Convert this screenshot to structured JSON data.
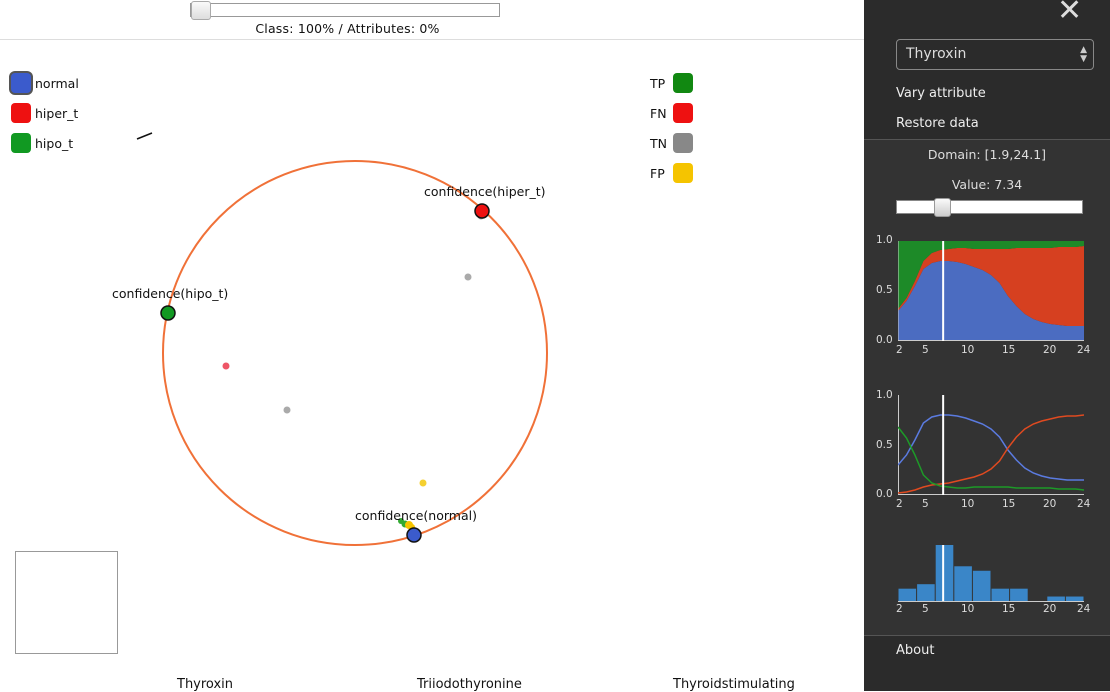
{
  "top": {
    "slider_label": "Class: 100% / Attributes: 0%"
  },
  "legend_classes": [
    {
      "label": "normal",
      "color": "#3b5bcc"
    },
    {
      "label": "hiper_t",
      "color": "#ee1111"
    },
    {
      "label": "hipo_t",
      "color": "#119922"
    }
  ],
  "legend_outcomes": [
    {
      "label": "TP",
      "color": "#118811"
    },
    {
      "label": "FN",
      "color": "#ee1111"
    },
    {
      "label": "TN",
      "color": "#888888"
    },
    {
      "label": "FP",
      "color": "#f5c400"
    }
  ],
  "radviz": {
    "anchors": [
      {
        "label": "confidence(hiper_t)",
        "color": "#ee1111"
      },
      {
        "label": "confidence(hipo_t)",
        "color": "#119922"
      },
      {
        "label": "confidence(normal)",
        "color": "#3b5bcc"
      }
    ],
    "circle_color": "#f07138"
  },
  "axes_names": [
    "Thyroxin",
    "Triiodothyronine",
    "Thyroidstimulating"
  ],
  "sidebar": {
    "select_value": "Thyroxin",
    "vary_attribute": "Vary attribute",
    "restore_data": "Restore data",
    "domain": "Domain: [1.9,24.1]",
    "value": "Value: 7.34",
    "current_value": 7.34,
    "about": "About",
    "x_ticks": [
      "2",
      "5",
      "10",
      "15",
      "20",
      "24"
    ],
    "y_ticks": [
      "1.0",
      "0.5",
      "0.0"
    ]
  },
  "chart_data": [
    {
      "type": "area",
      "title": "",
      "x": [
        2,
        3,
        4,
        5,
        6,
        7,
        8,
        9,
        10,
        11,
        12,
        13,
        14,
        15,
        16,
        17,
        18,
        19,
        20,
        21,
        22,
        23,
        24
      ],
      "series": [
        {
          "color": "#4b6cc1",
          "values": [
            0.3,
            0.4,
            0.55,
            0.72,
            0.78,
            0.8,
            0.8,
            0.79,
            0.77,
            0.74,
            0.71,
            0.66,
            0.58,
            0.45,
            0.35,
            0.27,
            0.22,
            0.19,
            0.17,
            0.16,
            0.15,
            0.15,
            0.15
          ]
        },
        {
          "color": "#d64020",
          "values": [
            0.02,
            0.03,
            0.05,
            0.08,
            0.1,
            0.11,
            0.12,
            0.14,
            0.16,
            0.18,
            0.21,
            0.26,
            0.34,
            0.47,
            0.58,
            0.66,
            0.71,
            0.74,
            0.76,
            0.78,
            0.79,
            0.79,
            0.8
          ]
        },
        {
          "color": "#1d8a28",
          "values": [
            0.68,
            0.57,
            0.4,
            0.2,
            0.12,
            0.09,
            0.08,
            0.07,
            0.07,
            0.08,
            0.08,
            0.08,
            0.08,
            0.08,
            0.07,
            0.07,
            0.07,
            0.07,
            0.07,
            0.06,
            0.06,
            0.06,
            0.05
          ]
        }
      ],
      "ylim": [
        0,
        1
      ]
    },
    {
      "type": "line",
      "title": "",
      "x": [
        2,
        3,
        4,
        5,
        6,
        7,
        8,
        9,
        10,
        11,
        12,
        13,
        14,
        15,
        16,
        17,
        18,
        19,
        20,
        21,
        22,
        23,
        24
      ],
      "series": [
        {
          "color": "#5b7be0",
          "values": [
            0.3,
            0.4,
            0.55,
            0.72,
            0.78,
            0.8,
            0.8,
            0.79,
            0.77,
            0.74,
            0.71,
            0.66,
            0.58,
            0.45,
            0.35,
            0.27,
            0.22,
            0.19,
            0.17,
            0.16,
            0.15,
            0.15,
            0.15
          ]
        },
        {
          "color": "#e04a20",
          "values": [
            0.02,
            0.03,
            0.05,
            0.08,
            0.1,
            0.11,
            0.12,
            0.14,
            0.16,
            0.18,
            0.21,
            0.26,
            0.34,
            0.47,
            0.58,
            0.66,
            0.71,
            0.74,
            0.76,
            0.78,
            0.79,
            0.79,
            0.8
          ]
        },
        {
          "color": "#1d9a28",
          "values": [
            0.68,
            0.57,
            0.4,
            0.2,
            0.12,
            0.09,
            0.08,
            0.07,
            0.07,
            0.08,
            0.08,
            0.08,
            0.08,
            0.08,
            0.07,
            0.07,
            0.07,
            0.07,
            0.07,
            0.06,
            0.06,
            0.06,
            0.05
          ]
        }
      ],
      "ylim": [
        0,
        1
      ]
    },
    {
      "type": "bar",
      "title": "",
      "bins": [
        [
          2,
          4.2
        ],
        [
          4.2,
          6.4
        ],
        [
          6.4,
          8.6
        ],
        [
          8.6,
          10.8
        ],
        [
          10.8,
          13
        ],
        [
          13,
          15.2
        ],
        [
          15.2,
          17.4
        ],
        [
          17.4,
          19.6
        ],
        [
          19.6,
          21.8
        ],
        [
          21.8,
          24
        ]
      ],
      "values": [
        11,
        15,
        50,
        31,
        27,
        11,
        11,
        0,
        4,
        4
      ],
      "color": "#3a86c8"
    }
  ]
}
